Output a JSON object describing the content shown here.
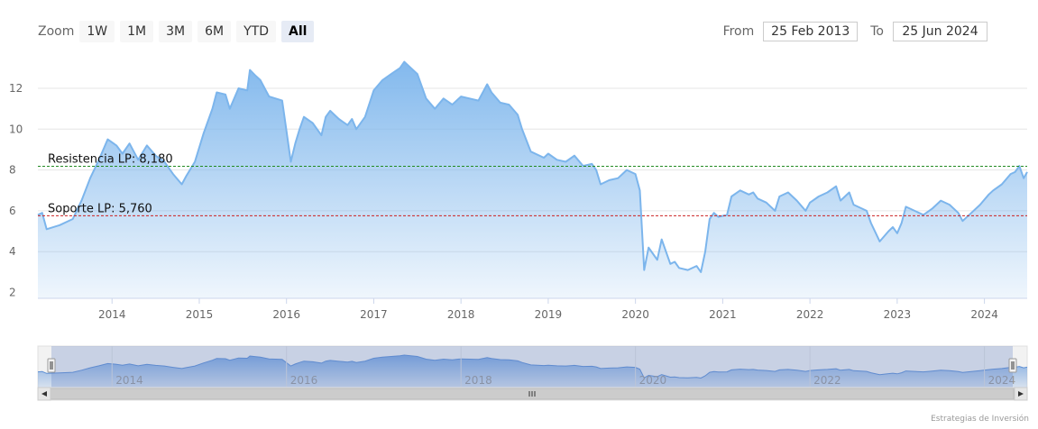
{
  "rangeSelector": {
    "zoom_label": "Zoom",
    "buttons": [
      "1W",
      "1M",
      "3M",
      "6M",
      "YTD",
      "All"
    ],
    "active": "All",
    "from_label": "From",
    "from_value": "25 Feb 2013",
    "to_label": "To",
    "to_value": "25 Jun 2024"
  },
  "credits": "Estrategias de Inversión",
  "chart_data": {
    "type": "area",
    "title": "",
    "xlabel": "",
    "ylabel": "",
    "xlim": [
      2013.15,
      2024.49
    ],
    "ylim": [
      2,
      13.5
    ],
    "y_ticks": [
      2,
      4,
      6,
      8,
      10,
      12
    ],
    "x_ticks": [
      2014,
      2015,
      2016,
      2017,
      2018,
      2019,
      2020,
      2021,
      2022,
      2023,
      2024
    ],
    "navigator_x_ticks": [
      2014,
      2016,
      2018,
      2020,
      2022,
      2024
    ],
    "grid": "horizontal",
    "series": [
      {
        "color": "#7cb5ec",
        "x": [
          2013.15,
          2013.2,
          2013.25,
          2013.4,
          2013.55,
          2013.65,
          2013.75,
          2013.85,
          2013.95,
          2014.05,
          2014.12,
          2014.2,
          2014.3,
          2014.4,
          2014.5,
          2014.6,
          2014.7,
          2014.8,
          2014.85,
          2014.95,
          2015.05,
          2015.15,
          2015.2,
          2015.3,
          2015.35,
          2015.45,
          2015.55,
          2015.58,
          2015.65,
          2015.7,
          2015.75,
          2015.8,
          2015.95,
          2016.05,
          2016.1,
          2016.15,
          2016.2,
          2016.3,
          2016.4,
          2016.45,
          2016.5,
          2016.6,
          2016.7,
          2016.75,
          2016.8,
          2016.9,
          2017.0,
          2017.1,
          2017.2,
          2017.3,
          2017.35,
          2017.4,
          2017.5,
          2017.6,
          2017.7,
          2017.8,
          2017.9,
          2018.0,
          2018.1,
          2018.2,
          2018.3,
          2018.35,
          2018.45,
          2018.55,
          2018.65,
          2018.7,
          2018.8,
          2018.95,
          2019.0,
          2019.1,
          2019.2,
          2019.3,
          2019.4,
          2019.5,
          2019.55,
          2019.6,
          2019.7,
          2019.8,
          2019.9,
          2020.0,
          2020.05,
          2020.1,
          2020.15,
          2020.2,
          2020.25,
          2020.3,
          2020.4,
          2020.45,
          2020.5,
          2020.6,
          2020.7,
          2020.75,
          2020.8,
          2020.85,
          2020.9,
          2020.95,
          2021.05,
          2021.1,
          2021.2,
          2021.3,
          2021.35,
          2021.4,
          2021.5,
          2021.6,
          2021.65,
          2021.75,
          2021.85,
          2021.95,
          2022.0,
          2022.1,
          2022.2,
          2022.3,
          2022.35,
          2022.45,
          2022.5,
          2022.65,
          2022.7,
          2022.8,
          2022.9,
          2022.95,
          2023.0,
          2023.05,
          2023.1,
          2023.2,
          2023.3,
          2023.4,
          2023.5,
          2023.6,
          2023.7,
          2023.75,
          2023.85,
          2023.95,
          2024.05,
          2024.1,
          2024.2,
          2024.3,
          2024.35,
          2024.4,
          2024.45,
          2024.49
        ],
        "values": [
          5.8,
          5.9,
          5.1,
          5.3,
          5.6,
          6.5,
          7.6,
          8.5,
          9.5,
          9.2,
          8.8,
          9.3,
          8.5,
          9.2,
          8.7,
          8.4,
          7.8,
          7.3,
          7.7,
          8.4,
          9.8,
          11.0,
          11.8,
          11.7,
          11.0,
          12.0,
          11.9,
          12.9,
          12.6,
          12.4,
          12.0,
          11.6,
          11.4,
          8.4,
          9.3,
          10.0,
          10.6,
          10.3,
          9.7,
          10.6,
          10.9,
          10.5,
          10.2,
          10.5,
          10.0,
          10.6,
          11.9,
          12.4,
          12.7,
          13.0,
          13.3,
          13.1,
          12.7,
          11.5,
          11.0,
          11.5,
          11.2,
          11.6,
          11.5,
          11.4,
          12.2,
          11.8,
          11.3,
          11.2,
          10.7,
          10.0,
          8.9,
          8.6,
          8.8,
          8.5,
          8.4,
          8.7,
          8.2,
          8.3,
          8.0,
          7.3,
          7.5,
          7.6,
          8.0,
          7.8,
          7.0,
          3.1,
          4.2,
          3.9,
          3.6,
          4.6,
          3.4,
          3.5,
          3.2,
          3.1,
          3.3,
          3.0,
          4.0,
          5.6,
          5.9,
          5.7,
          5.8,
          6.7,
          7.0,
          6.8,
          6.9,
          6.6,
          6.4,
          6.0,
          6.7,
          6.9,
          6.5,
          6.0,
          6.4,
          6.7,
          6.9,
          7.2,
          6.5,
          6.9,
          6.3,
          6.0,
          5.4,
          4.5,
          5.0,
          5.2,
          4.9,
          5.4,
          6.2,
          6.0,
          5.8,
          6.1,
          6.5,
          6.3,
          5.9,
          5.5,
          5.9,
          6.3,
          6.8,
          7.0,
          7.3,
          7.8,
          7.9,
          8.2,
          7.6,
          7.9
        ]
      }
    ],
    "plot_lines": [
      {
        "label": "Resistencia LP: 8,180",
        "value": 8.18,
        "color": "#228b22",
        "style": "dashed"
      },
      {
        "label": "Soporte LP: 5,760",
        "value": 5.76,
        "color": "#cc2222",
        "style": "dashed"
      }
    ]
  }
}
